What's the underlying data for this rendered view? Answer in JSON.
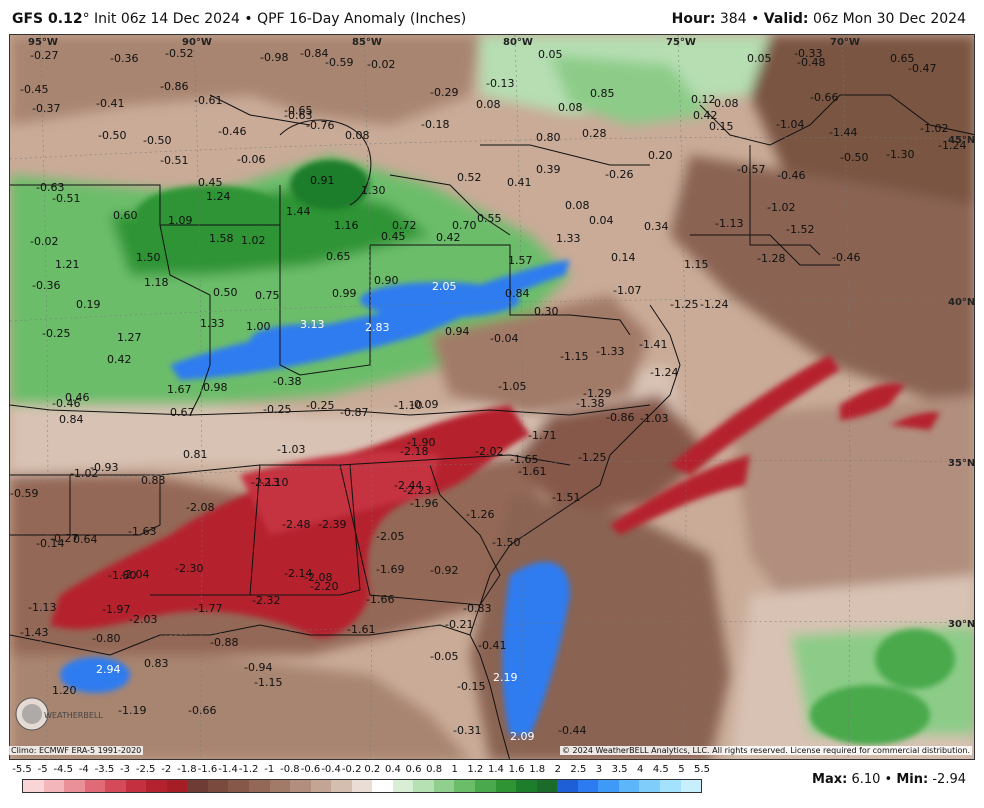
{
  "header": {
    "model": "GFS 0.12",
    "degree": "°",
    "init": "Init 06z 14 Dec 2024",
    "sep": "•",
    "product": "QPF 16-Day Anomaly (Inches)",
    "hour_label": "Hour:",
    "hour_value": "384",
    "valid_label": "Valid:",
    "valid_value": "06z Mon 30 Dec 2024"
  },
  "map": {
    "lon_labels": [
      "95°W",
      "90°W",
      "85°W",
      "80°W",
      "75°W",
      "70°W"
    ],
    "lat_labels": [
      "45°N",
      "40°N",
      "35°N",
      "30°N"
    ],
    "values": [
      "-0.27",
      "-0.36",
      "-0.52",
      "-0.98",
      "-0.84",
      "-0.59",
      "-0.02",
      "0.05",
      "-0.33",
      "-0.48",
      "0.65",
      "-0.47",
      "0.05",
      "-0.45",
      "-0.37",
      "-0.86",
      "-0.63",
      "-0.41",
      "-0.61",
      "-0.29",
      "-0.13",
      "0.08",
      "0.85",
      "0.12",
      "0.08",
      "-0.66",
      "-0.65",
      "-0.76",
      "0.08",
      "-0.18",
      "0.08",
      "0.42",
      "0.15",
      "-1.04",
      "-1.44",
      "-1.02",
      "-1.24",
      "-1.30",
      "-0.50",
      "-0.50",
      "-0.46",
      "0.80",
      "0.28",
      "0.20",
      "-0.50",
      "-0.51",
      "-0.06",
      "-0.57",
      "-0.46",
      "-0.63",
      "-0.51",
      "0.45",
      "1.24",
      "0.91",
      "1.30",
      "0.52",
      "0.41",
      "0.39",
      "-0.26",
      "-1.02",
      "0.60",
      "1.09",
      "1.44",
      "1.16",
      "0.72",
      "0.70",
      "0.55",
      "0.08",
      "0.04",
      "0.34",
      "-1.13",
      "-1.52",
      "-0.02",
      "1.58",
      "1.02",
      "0.45",
      "0.42",
      "1.33",
      "-1.28",
      "-0.46",
      "1.21",
      "1.50",
      "0.65",
      "0.90",
      "1.57",
      "0.14",
      "1.15",
      "-0.36",
      "1.18",
      "0.50",
      "0.75",
      "0.99",
      "2.05",
      "0.84",
      "-1.07",
      "-1.25",
      "-1.24",
      "0.19",
      "1.33",
      "1.00",
      "3.13",
      "2.83",
      "0.30",
      "0.94",
      "-0.25",
      "1.27",
      "-0.04",
      "-1.15",
      "-1.33",
      "-1.41",
      "0.42",
      "-0.38",
      "-1.24",
      "1.67",
      "0.98",
      "-1.05",
      "-1.29",
      "-0.46",
      "0.46",
      "0.67",
      "-0.25",
      "-0.87",
      "-1.10",
      "-0.09",
      "-1.38",
      "-0.86",
      "-1.03",
      "0.84",
      "-1.71",
      "-1.90",
      "-2.18",
      "-0.25",
      "0.81",
      "-1.03",
      "-2.02",
      "-1.65",
      "-1.25",
      "-1.61",
      "0.83",
      "-0.93",
      "-1.02",
      "-2.13",
      "-2.10",
      "-2.44",
      "-2.23",
      "-1.51",
      "-0.59",
      "-2.08",
      "-1.96",
      "-2.48",
      "-2.39",
      "-1.26",
      "-1.63",
      "-0.14",
      "-0.27",
      "0.64",
      "-2.05",
      "-1.50",
      "-2.30",
      "-2.14",
      "-2.08",
      "-2.20",
      "-1.69",
      "-0.92",
      "-1.80",
      "-2.04",
      "-1.13",
      "-1.97",
      "-1.77",
      "-2.32",
      "-1.66",
      "-0.83",
      "-2.03",
      "-1.61",
      "-0.21",
      "-1.43",
      "-0.80",
      "-0.88",
      "-0.41",
      "-0.05",
      "2.94",
      "0.83",
      "-0.94",
      "-1.15",
      "-0.15",
      "2.19",
      "1.20",
      "-1.19",
      "-0.66",
      "-0.31",
      "2.09",
      "-0.44"
    ]
  },
  "footer": {
    "climo": "Climo: ECMWF ERA-5 1991-2020",
    "copyright": "© 2024 WeatherBELL Analytics, LLC. All rights reserved. License required for commercial distribution.",
    "logo_text": "WEATHERBELL",
    "max_label": "Max:",
    "max_value": "6.10",
    "min_label": "Min:",
    "min_value": "-2.94"
  },
  "legend": {
    "labels": [
      "-5.5",
      "-5",
      "-4.5",
      "-4",
      "-3.5",
      "-3",
      "-2.5",
      "-2",
      "-1.8",
      "-1.6",
      "-1.4",
      "-1.2",
      "-1",
      "-0.8",
      "-0.6",
      "-0.4",
      "-0.2",
      "0.2",
      "0.4",
      "0.6",
      "0.8",
      "1",
      "1.2",
      "1.4",
      "1.6",
      "1.8",
      "2",
      "2.5",
      "3",
      "3.5",
      "4",
      "4.5",
      "5",
      "5.5"
    ],
    "colors": [
      "#f9d5d7",
      "#f2b6bb",
      "#ea9098",
      "#e06b76",
      "#d44a58",
      "#c53040",
      "#b5222f",
      "#a61e25",
      "#6f3c35",
      "#7a4a3f",
      "#86584a",
      "#946857",
      "#a27a68",
      "#b18e7d",
      "#c2a594",
      "#d4beb0",
      "#e9ddd6",
      "#ffffff",
      "#d8efd6",
      "#b6e1b3",
      "#90cf8d",
      "#6cbd6a",
      "#4aa94c",
      "#2e9434",
      "#1e7d2a",
      "#1b6b2b",
      "#1f5fd6",
      "#2d7bf0",
      "#3f9af7",
      "#5db6fa",
      "#7fcdfb",
      "#a4e1fc",
      "#c8effd"
    ]
  }
}
